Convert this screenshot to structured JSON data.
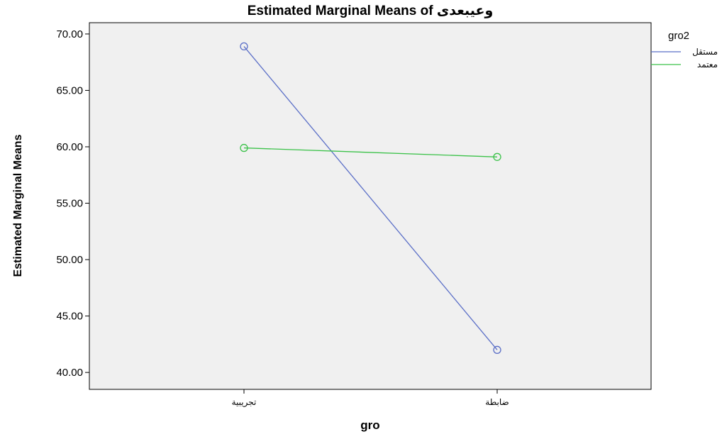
{
  "chart_data": {
    "type": "line",
    "title": "Estimated Marginal Means of وعيبعدى",
    "xlabel": "gro",
    "ylabel": "Estimated Marginal Means",
    "categories": [
      "تجريبية",
      "ضابطة"
    ],
    "ylim": [
      38.5,
      71.0
    ],
    "yticks": [
      40,
      45,
      50,
      55,
      60,
      65,
      70
    ],
    "ytick_labels": [
      "40.00",
      "45.00",
      "50.00",
      "55.00",
      "60.00",
      "65.00",
      "70.00"
    ],
    "grid": false,
    "legend": {
      "title": "gro2",
      "position": "right"
    },
    "series": [
      {
        "name": "مستقل",
        "values": [
          68.9,
          42.0
        ],
        "color": "#5b6fc7"
      },
      {
        "name": "معتمد",
        "values": [
          59.9,
          59.1
        ],
        "color": "#3cc24a"
      }
    ]
  }
}
